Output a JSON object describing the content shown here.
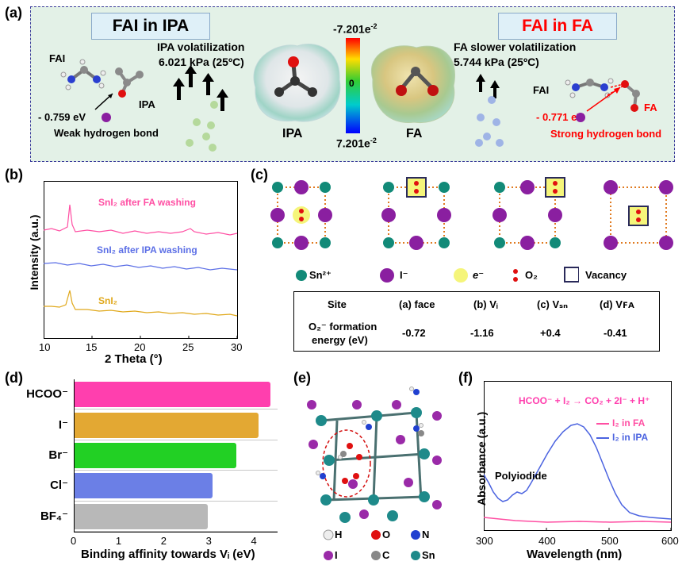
{
  "panel_labels": {
    "a": "(a)",
    "b": "(b)",
    "c": "(c)",
    "d": "(d)",
    "e": "(e)",
    "f": "(f)"
  },
  "panel_a": {
    "left_title": "FAI in IPA",
    "right_title": "FAI in FA",
    "fai_left": "FAI",
    "ipa_small": "IPA",
    "energy_left": "- 0.759 eV",
    "weak_bond": "Weak hydrogen bond",
    "ipa_vol_1": "IPA volatilization",
    "ipa_vol_2": "6.021 kPa (25ºC)",
    "scale_top": "-7.201e",
    "scale_top_exp": "-2",
    "scale_mid": "0",
    "scale_bottom": "7.201e",
    "scale_bottom_exp": "-2",
    "ipa_label": "IPA",
    "fa_label": "FA",
    "fa_vol_1": "FA slower volatilization",
    "fa_vol_2": "5.744 kPa (25ºC)",
    "fai_right": "FAI",
    "fa_small": "FA",
    "energy_right": "- 0.771 eV",
    "strong_bond": "Strong hydrogen bond",
    "colors": {
      "left_drops": "#b5d99c",
      "right_drops": "#9fb4e6",
      "red": "#ff0000"
    }
  },
  "panel_b": {
    "ylabel": "Intensity (a.u.)",
    "xlabel": "2 Theta (°)",
    "xticks": [
      "10",
      "15",
      "20",
      "25",
      "30"
    ],
    "series": [
      {
        "name": "SnI₂ after FA washing",
        "color": "#ff4fa3"
      },
      {
        "name": "SnI₂ after IPA washing",
        "color": "#5c6fe6"
      },
      {
        "name": "SnI₂",
        "color": "#e0a81a"
      }
    ]
  },
  "panel_c": {
    "legend": {
      "sn": "Sn²⁺",
      "i": "I⁻",
      "e": "e⁻",
      "o2": "O₂",
      "vacancy": "Vacancy"
    },
    "table": {
      "headers": [
        "Site",
        "(a) face",
        "(b) Vᵢ",
        "(c) Vₛₙ",
        "(d) Vꜰᴀ"
      ],
      "row_label_1": "O₂⁻ formation",
      "row_label_2": "energy (eV)",
      "values": [
        "-0.72",
        "-1.16",
        "+0.4",
        "-0.41"
      ]
    }
  },
  "chart_data": [
    {
      "type": "bar",
      "orientation": "horizontal",
      "categories": [
        "HCOO⁻",
        "I⁻",
        "Br⁻",
        "Cl⁻",
        "BF₄⁻"
      ],
      "values": [
        4.35,
        4.08,
        3.58,
        3.05,
        2.95
      ],
      "colors": [
        "#ff3fae",
        "#e3a833",
        "#22d024",
        "#6b7fe6",
        "#b8b8b8"
      ],
      "xlabel": "Binding affinity towards Vᵢ (eV)",
      "xlim": [
        0,
        4.5
      ],
      "xticks": [
        "0",
        "1",
        "2",
        "3",
        "4"
      ]
    },
    {
      "type": "line",
      "title": "HCOO⁻ + I₂ → CO₂ + 2I⁻ + H⁺",
      "xlabel": "Wavelength (nm)",
      "ylabel": "Absorbance (a.u.)",
      "xlim": [
        300,
        600
      ],
      "xticks": [
        "300",
        "400",
        "500",
        "600"
      ],
      "annotation": "Polyiodide",
      "series": [
        {
          "name": "I₂ in FA",
          "color": "#ff4fa3"
        },
        {
          "name": "I₂ in IPA",
          "color": "#4b63e0"
        }
      ]
    }
  ],
  "panel_e": {
    "legend": {
      "h": "H",
      "o": "O",
      "n": "N",
      "i": "I",
      "c": "C",
      "sn": "Sn"
    }
  }
}
